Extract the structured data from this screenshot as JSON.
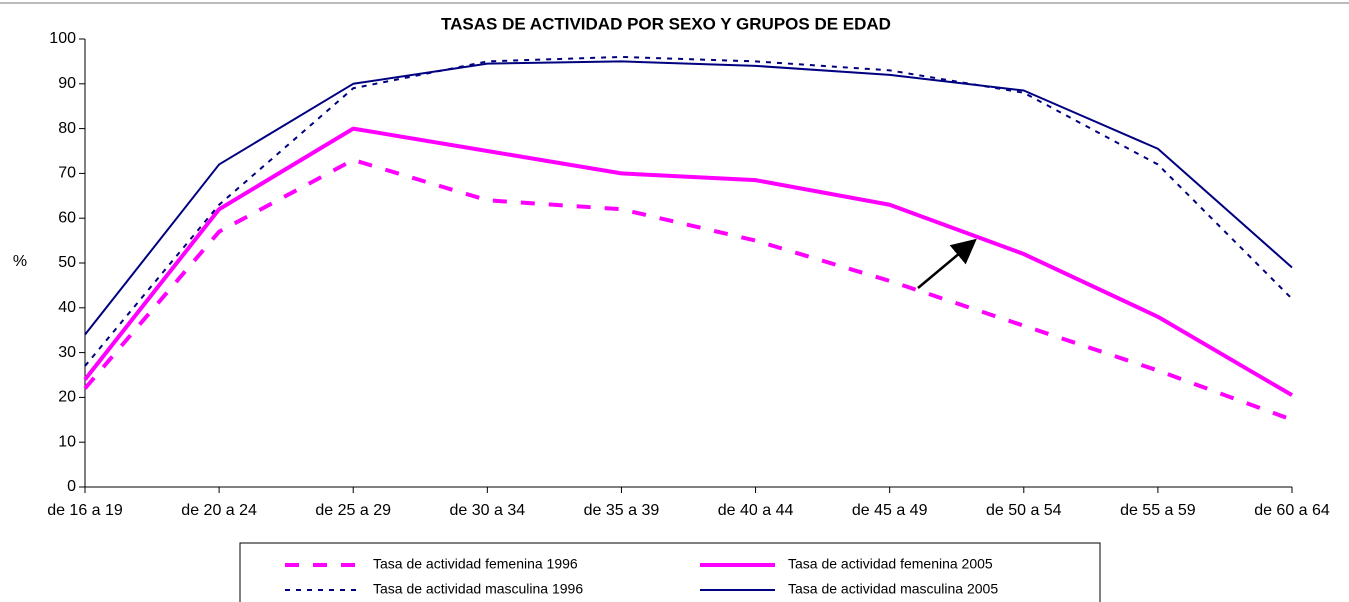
{
  "chart_data": {
    "type": "line",
    "title": "TASAS DE ACTIVIDAD POR SEXO Y  GRUPOS DE EDAD",
    "y_label": "%",
    "categories": [
      "de 16 a 19",
      "de 20 a 24",
      "de 25 a 29",
      "de 30 a 34",
      "de 35 a 39",
      "de 40 a 44",
      "de 45 a 49",
      "de 50 a 54",
      "de 55 a 59",
      "de 60 a 64"
    ],
    "series": [
      {
        "name": "Tasa de actividad femenina 1996",
        "color": "#ff00ff",
        "line_style": "dashed",
        "values": [
          22,
          57,
          73,
          64,
          62,
          55,
          46,
          36,
          26,
          15
        ]
      },
      {
        "name": "Tasa de actividad femenina 2005",
        "color": "#ff00ff",
        "line_style": "solid-thick",
        "values": [
          24,
          62,
          80,
          75,
          70,
          68.5,
          63,
          52,
          38,
          20.5
        ]
      },
      {
        "name": "Tasa de actividad masculina 1996",
        "color": "#000080",
        "line_style": "dotted",
        "values": [
          27,
          63,
          89,
          95,
          96,
          95,
          93,
          88,
          72,
          42
        ]
      },
      {
        "name": "Tasa de actividad masculina 2005",
        "color": "#000080",
        "line_style": "solid",
        "values": [
          34,
          72,
          90,
          94.5,
          95,
          94,
          92,
          88.5,
          75.5,
          49
        ]
      }
    ],
    "ylim": [
      0,
      100
    ],
    "yticks": [
      0,
      10,
      20,
      30,
      40,
      50,
      60,
      70,
      80,
      90,
      100
    ],
    "grid": false,
    "legend": "bottom"
  }
}
